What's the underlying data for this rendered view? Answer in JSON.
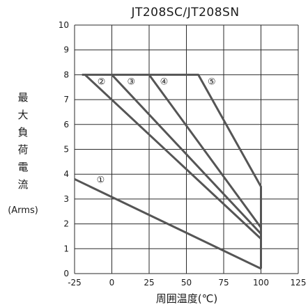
{
  "chart_data": {
    "type": "line",
    "title": "JT208SC/JT208SN",
    "xlabel": "周囲温度(℃)",
    "ylabel_chars": [
      "最",
      "大",
      "負",
      "荷",
      "電",
      "流"
    ],
    "ylabel_unit": "(Arms)",
    "xlim": [
      -25,
      125
    ],
    "ylim": [
      0,
      10
    ],
    "x_ticks": [
      -25,
      0,
      25,
      50,
      75,
      100,
      125
    ],
    "y_ticks": [
      0,
      1,
      2,
      3,
      4,
      5,
      6,
      7,
      8,
      9,
      10
    ],
    "x_tick_labels": [
      "-25",
      "0",
      "25",
      "50",
      "75",
      "100",
      "125"
    ],
    "y_tick_labels": [
      "0",
      "1",
      "2",
      "3",
      "4",
      "5",
      "6",
      "7",
      "8",
      "9",
      "10"
    ],
    "x_grid": [
      -25,
      0,
      25,
      50,
      75,
      100,
      125
    ],
    "y_grid": [
      0,
      1,
      2,
      3,
      4,
      5,
      6,
      7,
      8,
      9,
      10
    ],
    "series": [
      {
        "name": "①",
        "points": [
          [
            -25,
            3.8
          ],
          [
            100,
            0.2
          ]
        ],
        "label_at": [
          -7.5,
          3.8
        ]
      },
      {
        "name": "②",
        "points": [
          [
            -20,
            8
          ],
          [
            -18,
            8
          ],
          [
            100,
            1.4
          ]
        ],
        "label_at": [
          -7,
          7.75
        ]
      },
      {
        "name": "③",
        "points": [
          [
            -18,
            8
          ],
          [
            0,
            8
          ],
          [
            100,
            1.6
          ]
        ],
        "label_at": [
          13,
          7.75
        ]
      },
      {
        "name": "④",
        "points": [
          [
            0,
            8
          ],
          [
            25,
            8
          ],
          [
            100,
            1.85
          ]
        ],
        "label_at": [
          35,
          7.75
        ]
      },
      {
        "name": "⑤",
        "points": [
          [
            25,
            8
          ],
          [
            58,
            8
          ],
          [
            100,
            3.5
          ],
          [
            100,
            0.2
          ]
        ],
        "label_at": [
          67,
          7.75
        ]
      }
    ]
  }
}
